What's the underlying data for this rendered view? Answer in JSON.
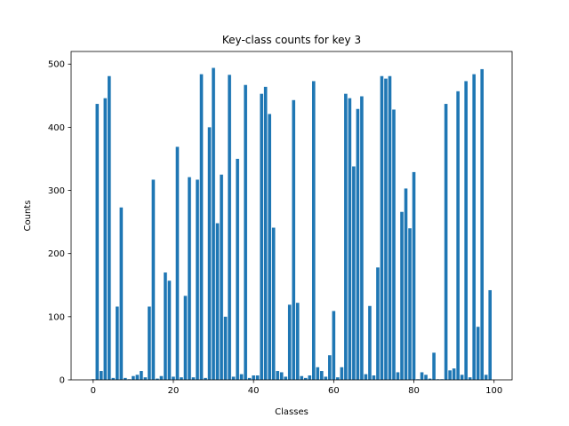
{
  "chart_data": {
    "type": "bar",
    "title": "Key-class counts for key 3",
    "xlabel": "Classes",
    "ylabel": "Counts",
    "xlim": [
      -5.5,
      104.5
    ],
    "ylim": [
      0,
      520
    ],
    "xticks": [
      0,
      20,
      40,
      60,
      80,
      100
    ],
    "yticks": [
      0,
      100,
      200,
      300,
      400,
      500
    ],
    "bar_color": "#1f77b4",
    "grid": false,
    "x": [
      0,
      1,
      2,
      3,
      4,
      5,
      6,
      7,
      8,
      9,
      10,
      11,
      12,
      13,
      14,
      15,
      16,
      17,
      18,
      19,
      20,
      21,
      22,
      23,
      24,
      25,
      26,
      27,
      28,
      29,
      30,
      31,
      32,
      33,
      34,
      35,
      36,
      37,
      38,
      39,
      40,
      41,
      42,
      43,
      44,
      45,
      46,
      47,
      48,
      49,
      50,
      51,
      52,
      53,
      54,
      55,
      56,
      57,
      58,
      59,
      60,
      61,
      62,
      63,
      64,
      65,
      66,
      67,
      68,
      69,
      70,
      71,
      72,
      73,
      74,
      75,
      76,
      77,
      78,
      79,
      80,
      81,
      82,
      83,
      84,
      85,
      86,
      87,
      88,
      89,
      90,
      91,
      92,
      93,
      94,
      95,
      96,
      97,
      98,
      99
    ],
    "values": [
      1,
      437,
      14,
      446,
      481,
      3,
      116,
      273,
      3,
      1,
      6,
      8,
      14,
      4,
      116,
      317,
      2,
      6,
      170,
      157,
      5,
      369,
      4,
      133,
      321,
      4,
      317,
      484,
      3,
      400,
      494,
      248,
      325,
      100,
      483,
      5,
      350,
      9,
      467,
      3,
      7,
      7,
      453,
      464,
      421,
      241,
      14,
      12,
      5,
      119,
      443,
      122,
      6,
      3,
      7,
      473,
      20,
      14,
      5,
      39,
      109,
      4,
      20,
      453,
      446,
      338,
      429,
      449,
      9,
      117,
      7,
      178,
      481,
      477,
      481,
      428,
      12,
      266,
      303,
      240,
      329,
      1,
      12,
      8,
      2,
      43,
      1,
      1,
      437,
      15,
      18,
      457,
      8,
      473,
      4,
      484,
      84,
      492,
      8,
      142
    ]
  }
}
